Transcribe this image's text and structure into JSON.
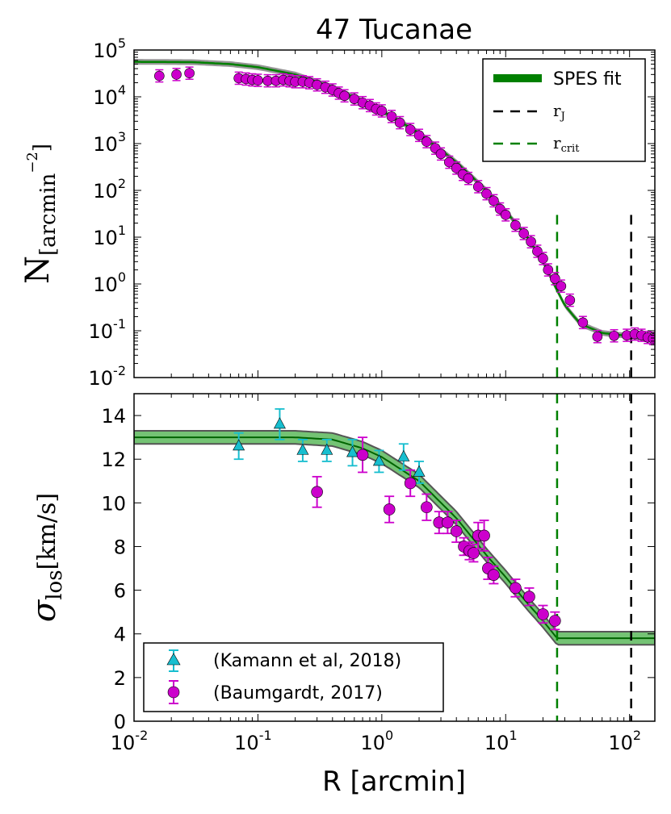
{
  "chart_data": [
    {
      "type": "line",
      "panel": "top",
      "title": "47 Tucanae",
      "xscale": "log",
      "yscale": "log",
      "xlim": [
        0.01,
        160
      ],
      "ylim": [
        0.01,
        100000
      ],
      "yticks": [
        {
          "base": "10",
          "exp": "-2",
          "value": 0.01
        },
        {
          "base": "10",
          "exp": "-1",
          "value": 0.1
        },
        {
          "base": "10",
          "exp": "0",
          "value": 1
        },
        {
          "base": "10",
          "exp": "1",
          "value": 10
        },
        {
          "base": "10",
          "exp": "2",
          "value": 100
        },
        {
          "base": "10",
          "exp": "3",
          "value": 1000
        },
        {
          "base": "10",
          "exp": "4",
          "value": 10000
        },
        {
          "base": "10",
          "exp": "5",
          "value": 100000
        }
      ],
      "ylabel": {
        "main": "N",
        "sub": "[arcmin",
        "sup": "−2",
        "close": "]"
      },
      "legend": {
        "position": "top-right",
        "entries": [
          {
            "label": "SPES fit",
            "style": "thick-green"
          },
          {
            "label_main": "r",
            "label_sub": "J",
            "style": "dashed-black"
          },
          {
            "label_main": "r",
            "label_sub": "crit",
            "style": "dashed-green"
          }
        ]
      },
      "vlines": [
        {
          "name": "r_crit",
          "x": 26,
          "ymin": 0.01,
          "ymax": 30,
          "color": "#008000"
        },
        {
          "name": "r_J",
          "x": 103,
          "ymin": 0.01,
          "ymax": 30,
          "color": "#000000"
        }
      ],
      "fit_points": [
        [
          0.01,
          56000
        ],
        [
          0.03,
          55000
        ],
        [
          0.06,
          50000
        ],
        [
          0.1,
          43000
        ],
        [
          0.2,
          30000
        ],
        [
          0.4,
          16000
        ],
        [
          0.7,
          8000
        ],
        [
          1,
          5000
        ],
        [
          2,
          1700
        ],
        [
          4,
          400
        ],
        [
          7,
          100
        ],
        [
          10,
          36
        ],
        [
          15,
          10
        ],
        [
          20,
          3
        ],
        [
          25,
          0.9
        ],
        [
          30,
          0.35
        ],
        [
          40,
          0.14
        ],
        [
          60,
          0.09
        ],
        [
          80,
          0.082
        ],
        [
          100,
          0.078
        ],
        [
          130,
          0.07
        ],
        [
          160,
          0.063
        ]
      ],
      "series": [
        {
          "name": "Data",
          "color": "#cc00cc",
          "points": [
            [
              0.016,
              28000
            ],
            [
              0.022,
              30000
            ],
            [
              0.028,
              32000
            ],
            [
              0.07,
              25000
            ],
            [
              0.08,
              24000
            ],
            [
              0.09,
              23000
            ],
            [
              0.1,
              22500
            ],
            [
              0.12,
              22000
            ],
            [
              0.14,
              22000
            ],
            [
              0.16,
              23000
            ],
            [
              0.18,
              22000
            ],
            [
              0.2,
              21000
            ],
            [
              0.23,
              21000
            ],
            [
              0.26,
              20000
            ],
            [
              0.3,
              18000
            ],
            [
              0.35,
              16000
            ],
            [
              0.4,
              14000
            ],
            [
              0.45,
              12000
            ],
            [
              0.5,
              10500
            ],
            [
              0.6,
              9000
            ],
            [
              0.7,
              7500
            ],
            [
              0.8,
              6500
            ],
            [
              0.9,
              5500
            ],
            [
              1,
              5000
            ],
            [
              1.2,
              3800
            ],
            [
              1.4,
              2800
            ],
            [
              1.7,
              2000
            ],
            [
              2,
              1500
            ],
            [
              2.3,
              1100
            ],
            [
              2.7,
              800
            ],
            [
              3,
              600
            ],
            [
              3.5,
              400
            ],
            [
              4,
              300
            ],
            [
              4.5,
              220
            ],
            [
              5,
              180
            ],
            [
              6,
              120
            ],
            [
              7,
              85
            ],
            [
              8,
              60
            ],
            [
              9,
              40
            ],
            [
              10,
              30
            ],
            [
              12,
              18
            ],
            [
              14,
              12
            ],
            [
              16,
              8
            ],
            [
              18,
              5
            ],
            [
              20,
              3.5
            ],
            [
              22,
              2
            ],
            [
              25,
              1.3
            ],
            [
              28,
              0.9
            ],
            [
              33,
              0.45
            ],
            [
              42,
              0.15
            ],
            [
              55,
              0.075
            ],
            [
              75,
              0.078
            ],
            [
              95,
              0.08
            ],
            [
              110,
              0.085
            ],
            [
              125,
              0.08
            ],
            [
              140,
              0.072
            ],
            [
              155,
              0.068
            ]
          ]
        }
      ]
    },
    {
      "type": "scatter",
      "panel": "bottom",
      "xscale": "log",
      "xlim": [
        0.01,
        160
      ],
      "ylim": [
        0,
        15
      ],
      "xlabel": "R [arcmin]",
      "xticks": [
        {
          "base": "10",
          "exp": "-2",
          "value": 0.01
        },
        {
          "base": "10",
          "exp": "-1",
          "value": 0.1
        },
        {
          "base": "10",
          "exp": "0",
          "value": 1
        },
        {
          "base": "10",
          "exp": "1",
          "value": 10
        },
        {
          "base": "10",
          "exp": "2",
          "value": 100
        }
      ],
      "yticks": [
        "0",
        "2",
        "4",
        "6",
        "8",
        "10",
        "12",
        "14"
      ],
      "ylabel": {
        "main": "σ",
        "sub": "los",
        "rest": "[km/s]"
      },
      "legend": {
        "position": "bottom-left",
        "entries": [
          {
            "label": "(Kamann et al, 2018)",
            "marker": "triangle",
            "color": "#17becf"
          },
          {
            "label": "(Baumgardt, 2017)",
            "marker": "circle",
            "color": "#cc00cc"
          }
        ]
      },
      "vlines": [
        {
          "name": "r_crit",
          "x": 26,
          "color": "#008000"
        },
        {
          "name": "r_J",
          "x": 103,
          "color": "#000000"
        }
      ],
      "fit_points": [
        [
          0.01,
          13.0
        ],
        [
          0.2,
          13.0
        ],
        [
          0.4,
          12.9
        ],
        [
          0.7,
          12.5
        ],
        [
          1,
          12.1
        ],
        [
          2,
          11.0
        ],
        [
          4,
          9.3
        ],
        [
          7,
          7.6
        ],
        [
          10,
          6.6
        ],
        [
          15,
          5.4
        ],
        [
          20,
          4.6
        ],
        [
          26,
          3.8
        ],
        [
          160,
          3.8
        ]
      ],
      "fit_band": 0.3,
      "series": [
        {
          "name": "(Kamann et al, 2018)",
          "marker": "triangle",
          "color": "#17becf",
          "points": [
            [
              0.07,
              12.6,
              0.6
            ],
            [
              0.15,
              13.6,
              0.7
            ],
            [
              0.23,
              12.4,
              0.5
            ],
            [
              0.36,
              12.4,
              0.5
            ],
            [
              0.58,
              12.3,
              0.6
            ],
            [
              0.95,
              11.9,
              0.5
            ],
            [
              1.5,
              12.1,
              0.6
            ],
            [
              2,
              11.4,
              0.5
            ]
          ]
        },
        {
          "name": "(Baumgardt, 2017)",
          "marker": "circle",
          "color": "#cc00cc",
          "points": [
            [
              0.3,
              10.5,
              0.7
            ],
            [
              0.7,
              12.2,
              0.8
            ],
            [
              1.15,
              9.7,
              0.6
            ],
            [
              1.7,
              10.9,
              0.6
            ],
            [
              2.3,
              9.8,
              0.6
            ],
            [
              2.9,
              9.1,
              0.5
            ],
            [
              3.4,
              9.1,
              0.5
            ],
            [
              4,
              8.7,
              0.5
            ],
            [
              4.6,
              8.0,
              0.4
            ],
            [
              5.1,
              7.8,
              0.4
            ],
            [
              5.5,
              7.7,
              0.4
            ],
            [
              6,
              8.5,
              0.6
            ],
            [
              6.7,
              8.5,
              0.7
            ],
            [
              7.2,
              7.0,
              0.5
            ],
            [
              8,
              6.7,
              0.4
            ],
            [
              12,
              6.1,
              0.4
            ],
            [
              15.5,
              5.7,
              0.4
            ],
            [
              20,
              4.9,
              0.4
            ],
            [
              25,
              4.6,
              0.4
            ]
          ]
        }
      ]
    }
  ]
}
